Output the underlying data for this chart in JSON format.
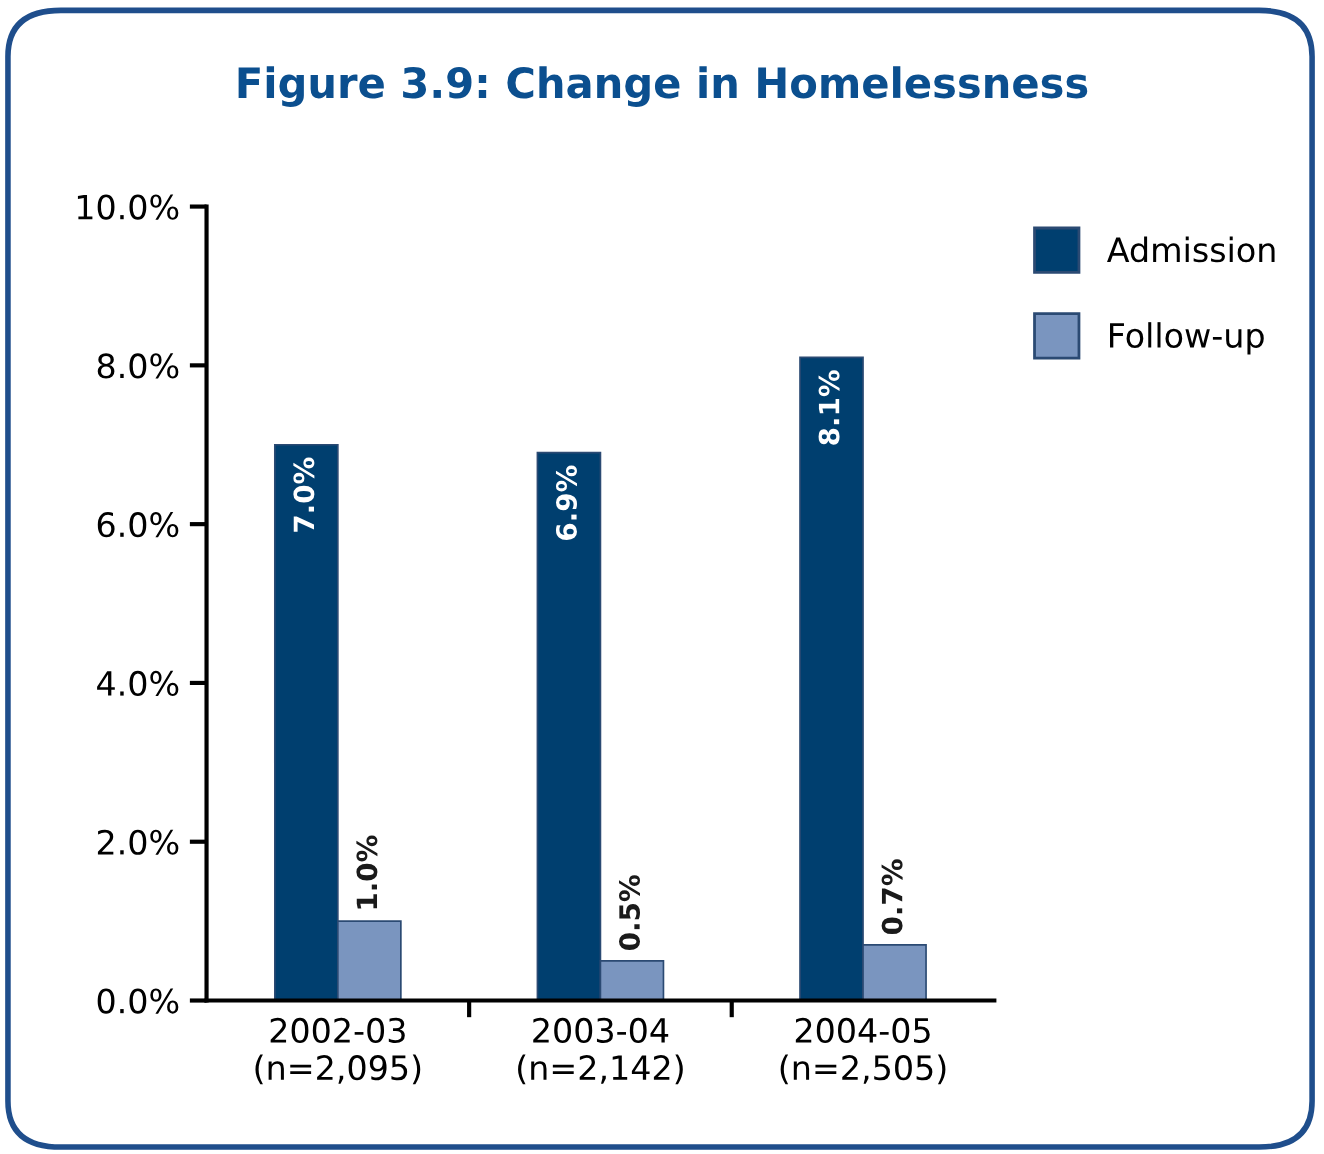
{
  "chart_data": {
    "type": "bar",
    "title": "Figure 3.9: Change in Homelessness",
    "categories": [
      "2002-03\n(n=2,095)",
      "2003-04\n(n=2,142)",
      "2004-05\n(n=2,505)"
    ],
    "series": [
      {
        "name": "Admission",
        "color": "#003f6f",
        "values": [
          7.0,
          6.9,
          8.1
        ],
        "value_labels": [
          "7.0%",
          "6.9%",
          "8.1%"
        ]
      },
      {
        "name": "Follow-up",
        "color": "#7a95bf",
        "values": [
          1.0,
          0.5,
          0.7
        ],
        "value_labels": [
          "1.0%",
          "0.5%",
          "0.7%"
        ]
      }
    ],
    "ylim": [
      0,
      10
    ],
    "yticks": [
      {
        "value": 0,
        "label": "0.0%"
      },
      {
        "value": 2,
        "label": "2.0%"
      },
      {
        "value": 4,
        "label": "4.0%"
      },
      {
        "value": 6,
        "label": "6.0%"
      },
      {
        "value": 8,
        "label": "8.0%"
      },
      {
        "value": 10,
        "label": "10.0%"
      }
    ],
    "grid": false,
    "legend": "top right"
  }
}
